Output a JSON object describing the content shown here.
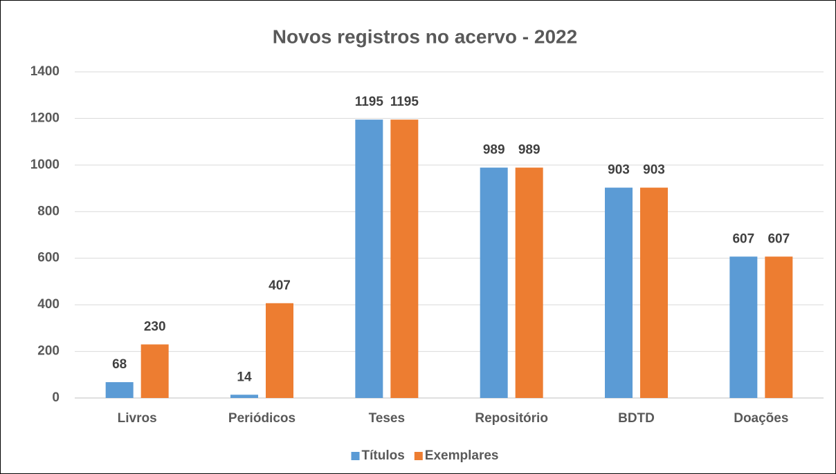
{
  "chart_data": {
    "type": "bar",
    "title": "Novos registros no acervo - 2022",
    "categories": [
      "Livros",
      "Periódicos",
      "Teses",
      "Repositório",
      "BDTD",
      "Doações"
    ],
    "series": [
      {
        "name": "Títulos",
        "color": "#5b9bd5",
        "values": [
          68,
          14,
          1195,
          989,
          903,
          607
        ]
      },
      {
        "name": "Exemplares",
        "color": "#ed7d31",
        "values": [
          230,
          407,
          1195,
          989,
          903,
          607
        ]
      }
    ],
    "ylim": [
      0,
      1400
    ],
    "yticks": [
      0,
      200,
      400,
      600,
      800,
      1000,
      1200,
      1400
    ],
    "grid": true,
    "legend": "bottom"
  }
}
